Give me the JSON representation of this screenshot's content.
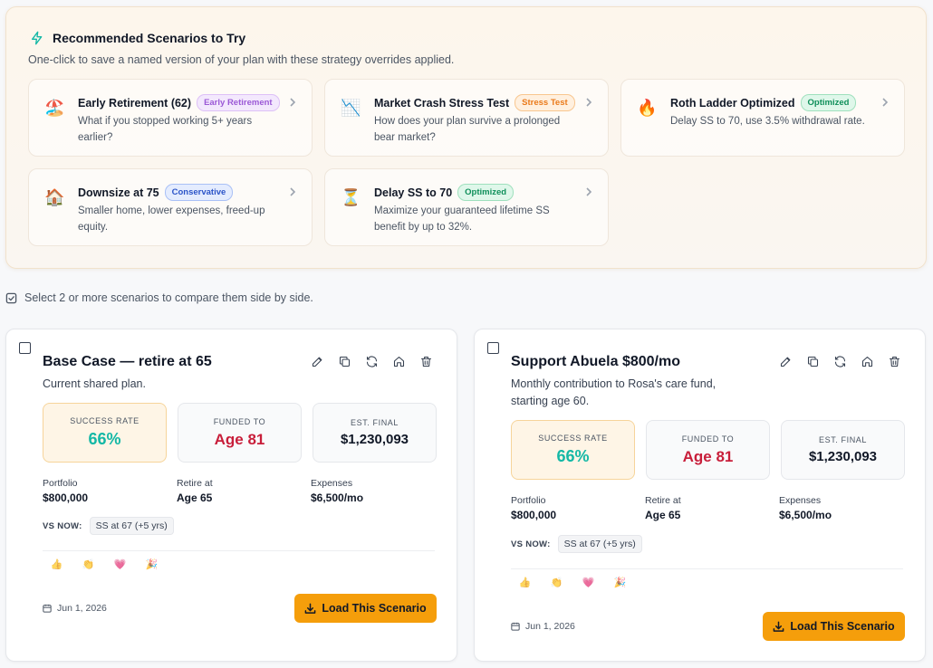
{
  "recommended": {
    "title": "Recommended Scenarios to Try",
    "subtitle": "One-click to save a named version of your plan with these strategy overrides applied.",
    "items": [
      {
        "emoji": "🏖️",
        "title": "Early Retirement (62)",
        "badge": "Early Retirement",
        "badge_color": "purple",
        "desc": "What if you stopped working 5+ years earlier?"
      },
      {
        "emoji": "📉",
        "title": "Market Crash Stress Test",
        "badge": "Stress Test",
        "badge_color": "orange",
        "desc": "How does your plan survive a prolonged bear market?"
      },
      {
        "emoji": "🔥",
        "title": "Roth Ladder Optimized",
        "badge": "Optimized",
        "badge_color": "green",
        "desc": "Delay SS to 70, use 3.5% withdrawal rate."
      },
      {
        "emoji": "🏠",
        "title": "Downsize at 75",
        "badge": "Conservative",
        "badge_color": "blue",
        "desc": "Smaller home, lower expenses, freed-up equity."
      },
      {
        "emoji": "⏳",
        "title": "Delay SS to 70",
        "badge": "Optimized",
        "badge_color": "green",
        "desc": "Maximize your guaranteed lifetime SS benefit by up to 32%."
      }
    ]
  },
  "compare_hint": "Select 2 or more scenarios to compare them side by side.",
  "scenarios": [
    {
      "title": "Base Case — retire at 65",
      "desc": "Current shared plan.",
      "stats": {
        "success_label": "SUCCESS RATE",
        "success_value": "66%",
        "funded_label": "FUNDED TO",
        "funded_value": "Age 81",
        "final_label": "EST. FINAL",
        "final_value": "$1,230,093"
      },
      "meta": [
        {
          "label": "Portfolio",
          "value": "$800,000"
        },
        {
          "label": "Retire at",
          "value": "Age 65"
        },
        {
          "label": "Expenses",
          "value": "$6,500/mo"
        }
      ],
      "vs_now_label": "VS NOW:",
      "vs_now_chip": "SS at 67 (+5 yrs)",
      "reactions": [
        "👍",
        "👏",
        "💗",
        "🎉"
      ],
      "date": "Jun 1, 2026",
      "load_label": "Load This Scenario"
    },
    {
      "title": "Support Abuela $800/mo",
      "desc": "Monthly contribution to Rosa's care fund, starting age 60.",
      "stats": {
        "success_label": "SUCCESS RATE",
        "success_value": "66%",
        "funded_label": "FUNDED TO",
        "funded_value": "Age 81",
        "final_label": "EST. FINAL",
        "final_value": "$1,230,093"
      },
      "meta": [
        {
          "label": "Portfolio",
          "value": "$800,000"
        },
        {
          "label": "Retire at",
          "value": "Age 65"
        },
        {
          "label": "Expenses",
          "value": "$6,500/mo"
        }
      ],
      "vs_now_label": "VS NOW:",
      "vs_now_chip": "SS at 67 (+5 yrs)",
      "reactions": [
        "👍",
        "👏",
        "💗",
        "🎉"
      ],
      "date": "Jun 1, 2026",
      "load_label": "Load This Scenario"
    }
  ],
  "colors": {
    "accent": "#f59e0b",
    "success": "#14b8a6",
    "danger": "#c81e3a"
  }
}
